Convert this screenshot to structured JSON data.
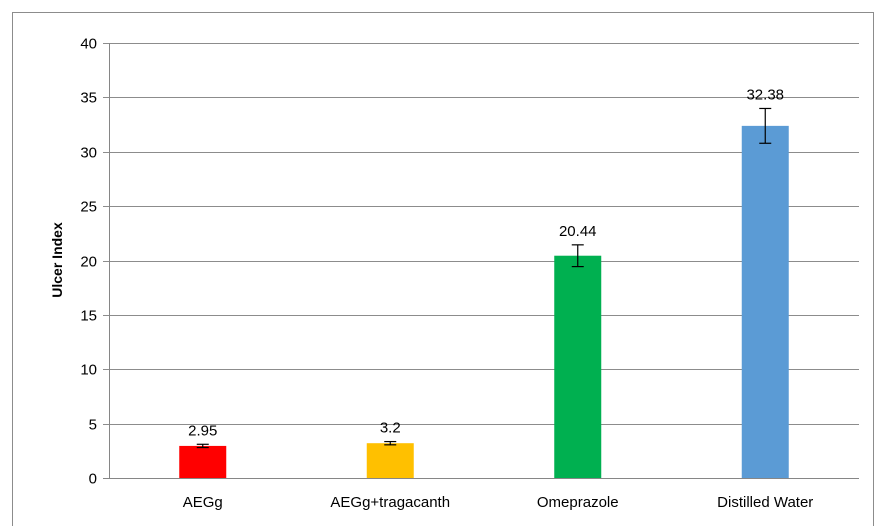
{
  "chart_data": {
    "type": "bar",
    "title": "",
    "xlabel": "",
    "ylabel": "Ulcer Index",
    "ylim": [
      0,
      40
    ],
    "yticks": [
      0,
      5,
      10,
      15,
      20,
      25,
      30,
      35,
      40
    ],
    "grid": true,
    "legend": "none",
    "categories": [
      "AEGg",
      "AEGg+tragacanth",
      "Omeprazole",
      "Distilled Water"
    ],
    "values": [
      2.95,
      3.2,
      20.44,
      32.38
    ],
    "value_labels": [
      "2.95",
      "3.2",
      "20.44",
      "32.38"
    ],
    "errors": [
      0.15,
      0.15,
      1.0,
      1.6
    ],
    "colors": [
      "#ff0000",
      "#ffc000",
      "#00b050",
      "#5b9bd5"
    ]
  }
}
